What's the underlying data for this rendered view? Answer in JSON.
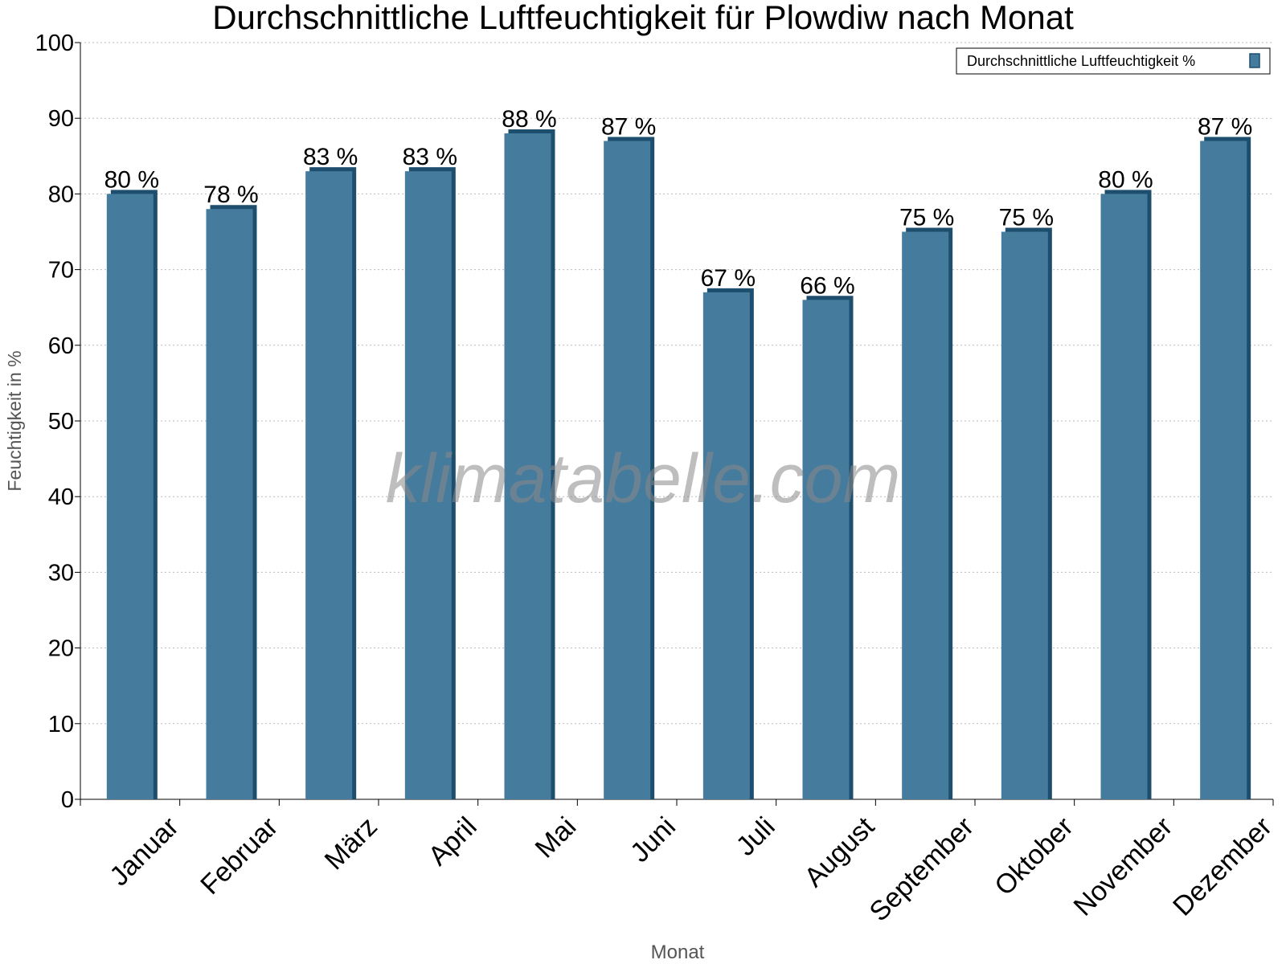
{
  "chart_data": {
    "type": "bar",
    "title": "Durchschnittliche Luftfeuchtigkeit für Plowdiw nach Monat",
    "xlabel": "Monat",
    "ylabel": "Feuchtigkeit in %",
    "ylim": [
      0,
      100
    ],
    "yticks": [
      0,
      10,
      20,
      30,
      40,
      50,
      60,
      70,
      80,
      90,
      100
    ],
    "grid": true,
    "legend_position": "top-right",
    "categories": [
      "Januar",
      "Februar",
      "März",
      "April",
      "Mai",
      "Juni",
      "Juli",
      "August",
      "September",
      "Oktober",
      "November",
      "Dezember"
    ],
    "series": [
      {
        "name": "Durchschnittliche Luftfeuchtigkeit %",
        "values": [
          80,
          78,
          83,
          83,
          88,
          87,
          67,
          66,
          75,
          75,
          80,
          87
        ],
        "color": "#457b9d",
        "edge_color": "#1d4e6e"
      }
    ],
    "data_labels": [
      "80 %",
      "78 %",
      "83 %",
      "83 %",
      "88 %",
      "87 %",
      "67 %",
      "66 %",
      "75 %",
      "75 %",
      "80 %",
      "87 %"
    ],
    "watermark": "klimatabelle.com"
  }
}
